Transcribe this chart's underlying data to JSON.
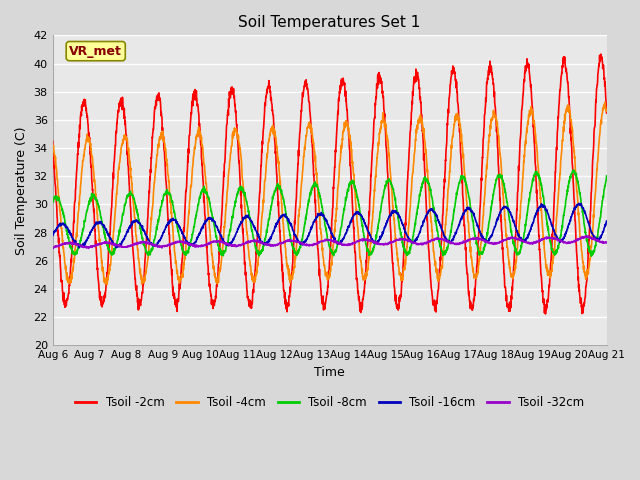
{
  "title": "Soil Temperatures Set 1",
  "xlabel": "Time",
  "ylabel": "Soil Temperature (C)",
  "ylim": [
    20,
    42
  ],
  "yticks": [
    20,
    22,
    24,
    26,
    28,
    30,
    32,
    34,
    36,
    38,
    40,
    42
  ],
  "x_tick_labels": [
    "Aug 6",
    "Aug 7",
    "Aug 8",
    "Aug 9",
    "Aug 10",
    "Aug 11",
    "Aug 12",
    "Aug 13",
    "Aug 14",
    "Aug 15",
    "Aug 16",
    "Aug 17",
    "Aug 18",
    "Aug 19",
    "Aug 20",
    "Aug 21"
  ],
  "series_colors": [
    "#ff0000",
    "#ff8800",
    "#00cc00",
    "#0000bb",
    "#9900cc"
  ],
  "series_labels": [
    "Tsoil -2cm",
    "Tsoil -4cm",
    "Tsoil -8cm",
    "Tsoil -16cm",
    "Tsoil -32cm"
  ],
  "linewidth": 1.2,
  "fig_bg_color": "#d8d8d8",
  "plot_bg_color": "#e8e8e8",
  "grid_color": "#ffffff",
  "legend_bg": "#ffffff",
  "annotation_text": "VR_met",
  "annotation_color": "#880000",
  "annotation_bg": "#ffff99",
  "annotation_border": "#888800"
}
